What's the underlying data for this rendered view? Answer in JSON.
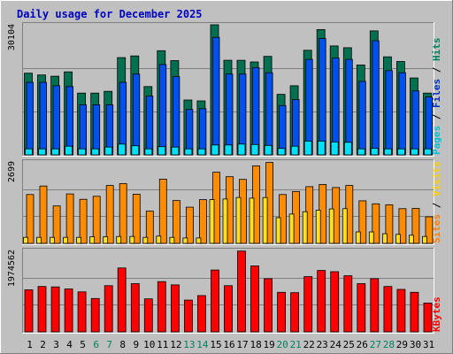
{
  "chart_data": {
    "type": "bar",
    "title": "Daily usage for December 2025",
    "categories": [
      "1",
      "2",
      "3",
      "4",
      "5",
      "6",
      "7",
      "8",
      "9",
      "10",
      "11",
      "12",
      "13",
      "14",
      "15",
      "16",
      "17",
      "18",
      "19",
      "20",
      "21",
      "22",
      "23",
      "24",
      "25",
      "26",
      "27",
      "28",
      "29",
      "30",
      "31"
    ],
    "weekend_days": [
      "6",
      "7",
      "13",
      "14",
      "20",
      "21",
      "27",
      "28"
    ],
    "panels": [
      {
        "id": "hits-panel",
        "max_label": "30104",
        "ymax": 30104,
        "right_labels": [
          {
            "text": "Pages",
            "color": "#00c0d8"
          },
          {
            "text": " / ",
            "color": "#000000"
          },
          {
            "text": "Files",
            "color": "#0030c8"
          },
          {
            "text": " / ",
            "color": "#000000"
          },
          {
            "text": "Hits",
            "color": "#008060"
          }
        ],
        "series": [
          {
            "name": "Hits",
            "color": "#007050",
            "values": [
              18900,
              18500,
              18200,
              19200,
              14300,
              14300,
              14700,
              22500,
              22900,
              15800,
              24100,
              21800,
              12700,
              12500,
              30104,
              21900,
              21900,
              21500,
              22800,
              14000,
              16000,
              24200,
              29000,
              25200,
              24800,
              20800,
              28700,
              22700,
              21600,
              17800,
              14300
            ]
          },
          {
            "name": "Files",
            "color": "#0050f0",
            "values": [
              16800,
              16800,
              16000,
              15800,
              11600,
              11600,
              11600,
              16800,
              18700,
              13600,
              20900,
              18100,
              10500,
              10700,
              27200,
              18700,
              18700,
              20200,
              19000,
              11400,
              12800,
              22100,
              26900,
              22400,
              22100,
              17000,
              26400,
              19500,
              19000,
              14800,
              13400
            ]
          },
          {
            "name": "Pages",
            "color": "#00e0f8",
            "values": [
              1400,
              1400,
              1400,
              2000,
              1400,
              1400,
              1800,
              2500,
              2100,
              1400,
              1900,
              1800,
              1400,
              1400,
              2300,
              2300,
              2500,
              2400,
              2200,
              1500,
              2000,
              3200,
              3200,
              3000,
              2900,
              1400,
              1500,
              1400,
              1400,
              1400,
              1400
            ]
          }
        ]
      },
      {
        "id": "visits-panel",
        "max_label": "2699",
        "ymax": 2699,
        "right_labels": [
          {
            "text": "Sites",
            "color": "#ff8000"
          },
          {
            "text": " / ",
            "color": "#000000"
          },
          {
            "text": "Visits",
            "color": "#ffd000"
          }
        ],
        "series": [
          {
            "name": "Visits",
            "color": "#ff8c00",
            "values": [
              1620,
              1900,
              1240,
              1640,
              1460,
              1560,
              1920,
              1980,
              1630,
              1070,
              2130,
              1420,
              1200,
              1450,
              2360,
              2210,
              2120,
              2570,
              2680,
              1620,
              1720,
              1880,
              1950,
              1850,
              1920,
              1410,
              1310,
              1280,
              1150,
              1160,
              880
            ]
          },
          {
            "name": "Sites",
            "color": "#ffe020",
            "values": [
              200,
              200,
              200,
              200,
              200,
              220,
              220,
              230,
              230,
              200,
              240,
              200,
              180,
              180,
              1450,
              1470,
              1520,
              1500,
              1520,
              850,
              970,
              1050,
              1100,
              1140,
              1150,
              380,
              380,
              320,
              300,
              270,
              230
            ]
          }
        ]
      },
      {
        "id": "kbytes-panel",
        "max_label": "1974562",
        "ymax": 1974562,
        "right_labels": [
          {
            "text": "KBytes",
            "color": "#ff0000"
          }
        ],
        "series": [
          {
            "name": "KBytes",
            "color": "#ff0000",
            "values": [
              1020000,
              1100000,
              1090000,
              1040000,
              970000,
              810000,
              1120000,
              1550000,
              1170000,
              800000,
              1220000,
              1140000,
              770000,
              880000,
              1500000,
              1120000,
              1960000,
              1600000,
              1290000,
              960000,
              950000,
              1340000,
              1490000,
              1460000,
              1360000,
              1170000,
              1290000,
              1100000,
              1030000,
              960000,
              700000
            ]
          }
        ]
      }
    ]
  }
}
